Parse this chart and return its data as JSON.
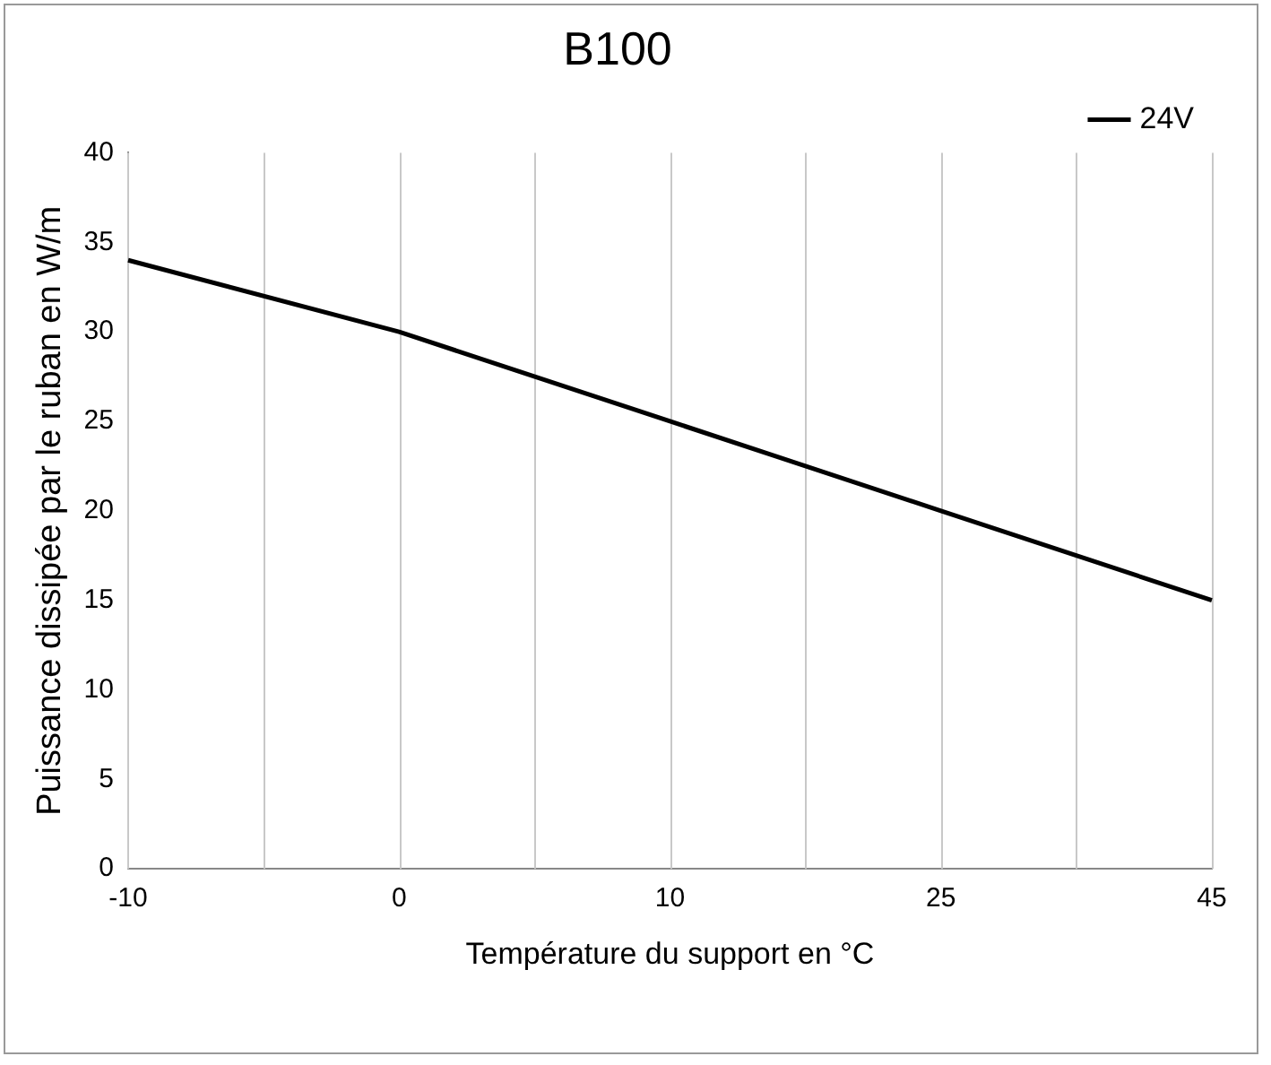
{
  "chart_data": {
    "type": "line",
    "title": "B100",
    "xlabel": "Température du support en °C",
    "ylabel": "Puissance dissipée par le ruban en W/m",
    "categories": [
      "-10",
      "0",
      "10",
      "25",
      "45"
    ],
    "series": [
      {
        "name": "24V",
        "color": "#000000",
        "values": [
          34,
          30,
          25,
          20,
          15
        ]
      }
    ],
    "ylim": [
      0,
      40
    ],
    "yticks": [
      0,
      5,
      10,
      15,
      20,
      25,
      30,
      35,
      40
    ],
    "grid": "x",
    "legend": "top right",
    "marker": "none",
    "line_style": "solid"
  }
}
